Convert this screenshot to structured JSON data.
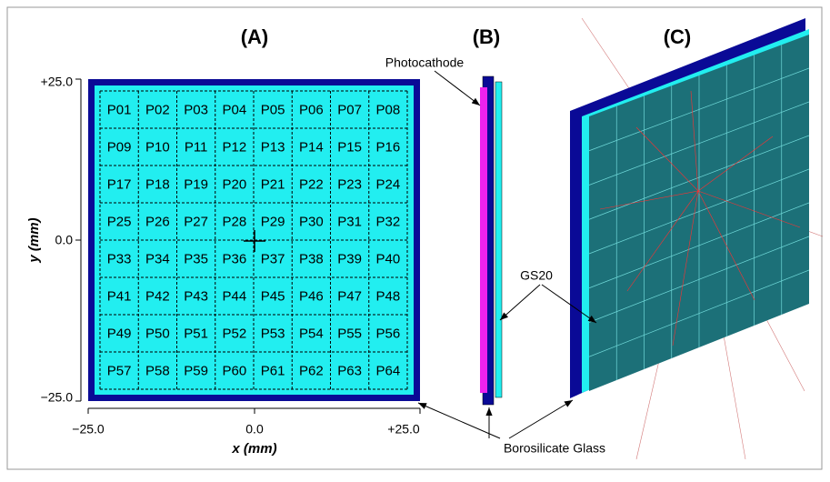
{
  "panels": {
    "a": {
      "title": "(A)",
      "x_label": "x (mm)",
      "y_label": "y (mm)",
      "x_ticks": [
        "−25.0",
        "0.0",
        "+25.0"
      ],
      "y_ticks": [
        "+25.0",
        "0.0",
        "−25.0"
      ],
      "pixels": [
        "P01",
        "P02",
        "P03",
        "P04",
        "P05",
        "P06",
        "P07",
        "P08",
        "P09",
        "P10",
        "P11",
        "P12",
        "P13",
        "P14",
        "P15",
        "P16",
        "P17",
        "P18",
        "P19",
        "P20",
        "P21",
        "P22",
        "P23",
        "P24",
        "P25",
        "P26",
        "P27",
        "P28",
        "P29",
        "P30",
        "P31",
        "P32",
        "P33",
        "P34",
        "P35",
        "P36",
        "P37",
        "P38",
        "P39",
        "P40",
        "P41",
        "P42",
        "P43",
        "P44",
        "P45",
        "P46",
        "P47",
        "P48",
        "P49",
        "P50",
        "P51",
        "P52",
        "P53",
        "P54",
        "P55",
        "P56",
        "P57",
        "P58",
        "P59",
        "P60",
        "P61",
        "P62",
        "P63",
        "P64"
      ]
    },
    "b": {
      "title": "(B)"
    },
    "c": {
      "title": "(C)"
    }
  },
  "annotations": {
    "photocathode": "Photocathode",
    "gs20": "GS20",
    "glass": "Borosilicate Glass"
  }
}
